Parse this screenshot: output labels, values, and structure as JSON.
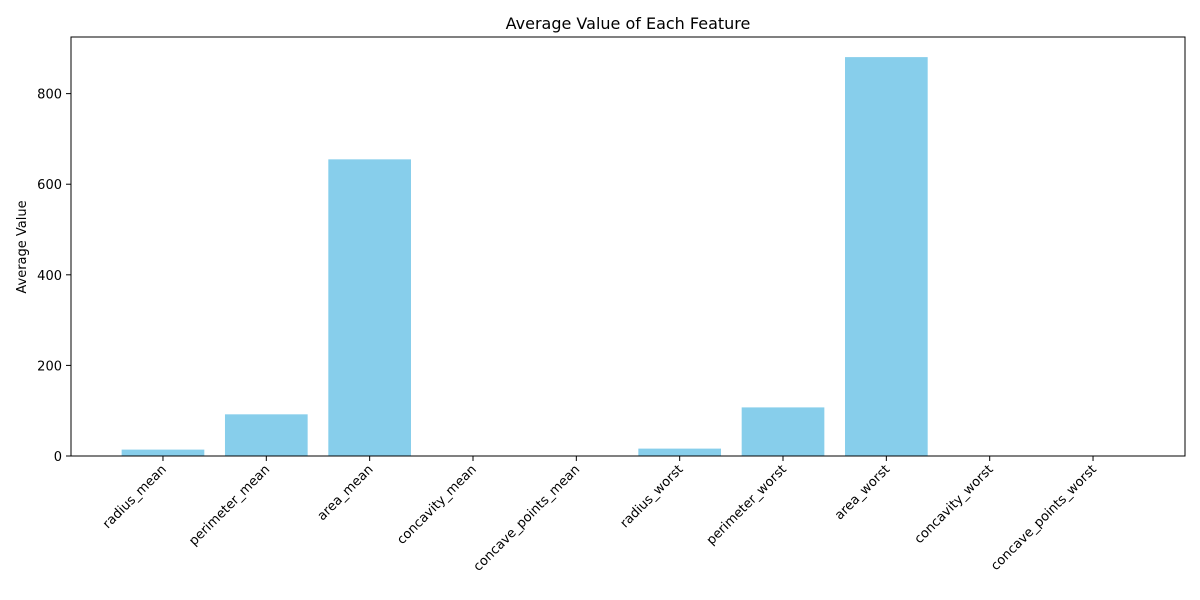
{
  "chart_data": {
    "type": "bar",
    "title": "Average Value of Each Feature",
    "xlabel": "",
    "ylabel": "Average Value",
    "categories": [
      "radius_mean",
      "perimeter_mean",
      "area_mean",
      "concavity_mean",
      "concave_points_mean",
      "radius_worst",
      "perimeter_worst",
      "area_worst",
      "concavity_worst",
      "concave_points_worst"
    ],
    "values": [
      14.1,
      92.0,
      654.9,
      0.09,
      0.05,
      16.3,
      107.3,
      880.6,
      0.27,
      0.11
    ],
    "ylim": [
      0,
      925
    ],
    "yticks": [
      0,
      200,
      400,
      600,
      800
    ],
    "bar_color": "#87ceeb",
    "grid": false,
    "x_tick_rotation_deg": 45
  }
}
